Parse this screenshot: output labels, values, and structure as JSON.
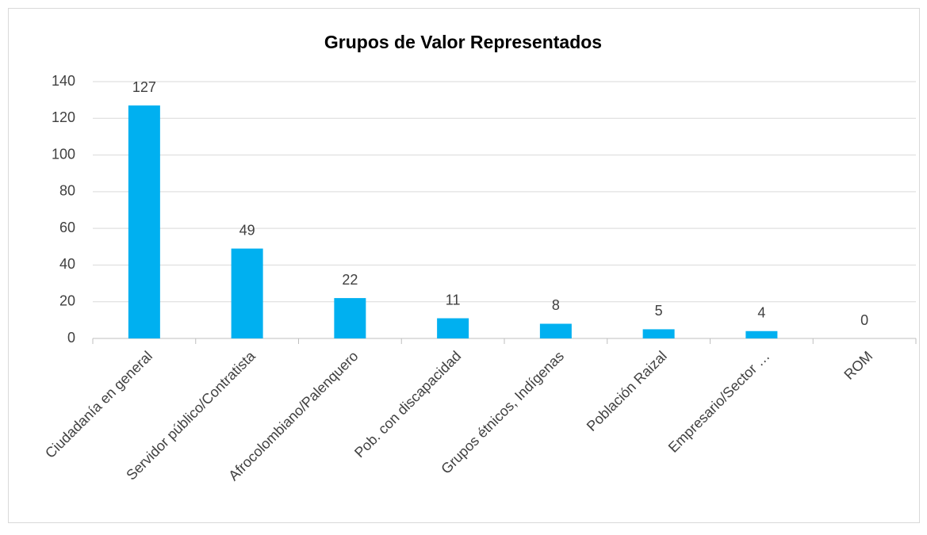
{
  "chart_data": {
    "type": "bar",
    "title": "Grupos de Valor Representados",
    "categories": [
      "Ciudadanía en general",
      "Servidor público/Contratista",
      "Afrocolombiano/Palenquero",
      "Pob. con discapacidad",
      "Grupos étnicos, Indígenas",
      "Población Raizal",
      "Empresario/Sector …",
      "ROM"
    ],
    "values": [
      127,
      49,
      22,
      11,
      8,
      5,
      4,
      0
    ],
    "color": "#00b0f0",
    "ylim": [
      0,
      140
    ],
    "yticks": [
      0,
      20,
      40,
      60,
      80,
      100,
      120,
      140
    ],
    "grid": true,
    "data_labels": true
  }
}
